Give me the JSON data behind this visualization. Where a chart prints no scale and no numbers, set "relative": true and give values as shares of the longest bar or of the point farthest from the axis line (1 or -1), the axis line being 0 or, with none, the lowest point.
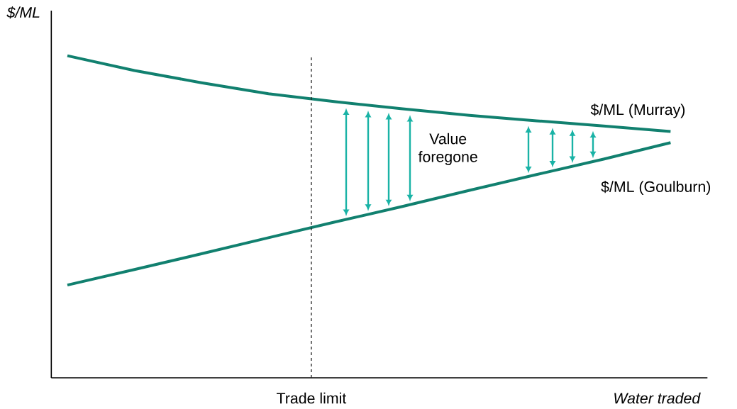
{
  "chart_data": {
    "type": "line",
    "relative": true,
    "ylabel": "$/ML",
    "xlabel": "Water traded",
    "categories": [
      null,
      null,
      null,
      null,
      null,
      null,
      null,
      null,
      null,
      null
    ],
    "series": [
      {
        "name": "$/ML (Murray)",
        "color": "#11806f",
        "values": [
          1.0,
          0.954,
          0.916,
          0.882,
          0.857,
          0.835,
          0.815,
          0.798,
          0.782,
          0.765
        ]
      },
      {
        "name": "$/ML (Goulburn)",
        "color": "#11806f",
        "values": [
          0.288,
          0.336,
          0.385,
          0.435,
          0.484,
          0.532,
          0.582,
          0.631,
          0.679,
          0.73
        ]
      }
    ],
    "annotations": [
      "Value foregone",
      "Trade limit"
    ],
    "marker": "none",
    "line_style": "solid"
  }
}
